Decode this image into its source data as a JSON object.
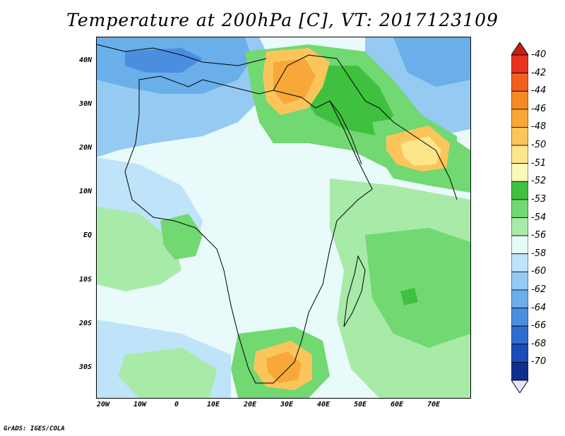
{
  "title": "Temperature at 200hPa [C], VT: 2017123109",
  "credit": "GrADS: IGES/COLA",
  "lat_labels": [
    "40N",
    "30N",
    "20N",
    "10N",
    "EQ",
    "10S",
    "20S",
    "30S"
  ],
  "lon_labels": [
    "20W",
    "10W",
    "0",
    "10E",
    "20E",
    "30E",
    "40E",
    "50E",
    "60E",
    "70E"
  ],
  "colorbar": {
    "labels": [
      "-40",
      "-42",
      "-44",
      "-46",
      "-48",
      "-50",
      "-51",
      "-52",
      "-53",
      "-54",
      "-56",
      "-58",
      "-60",
      "-62",
      "-64",
      "-66",
      "-68",
      "-70"
    ],
    "colors": [
      "#e8321e",
      "#f06020",
      "#f58a24",
      "#f8a838",
      "#fcc55c",
      "#fde68a",
      "#fbf8b8",
      "#3fc13f",
      "#72d872",
      "#a8eaa8",
      "#e6faf6",
      "#bfe3f8",
      "#95caf2",
      "#6aaeea",
      "#4a8ee0",
      "#2f6ccf",
      "#1a4cb8",
      "#0f2f8f"
    ],
    "top_arrow_color": "#c81e12",
    "bottom_arrow_color": "#e6e6fa"
  }
}
